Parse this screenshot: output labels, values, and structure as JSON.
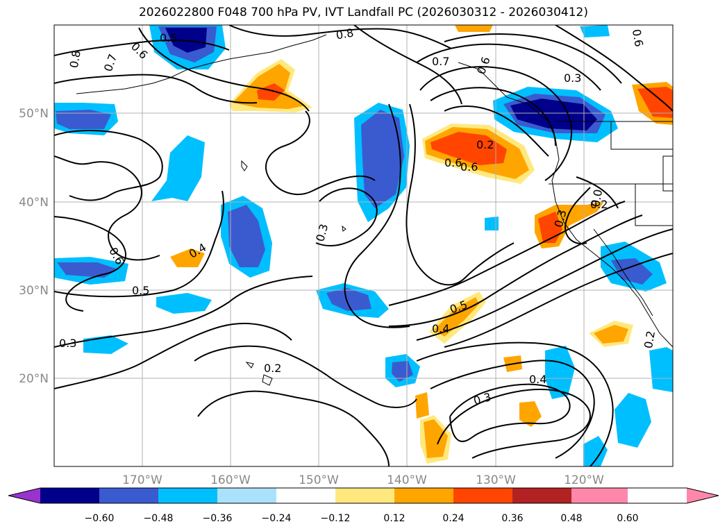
{
  "title": "2026022800 F048 700 hPa PV, IVT Landfall PC (2026030312 - 2026030412)",
  "map": {
    "lon_ticks": [
      "170°W",
      "160°W",
      "150°W",
      "140°W",
      "130°W",
      "120°W"
    ],
    "lat_ticks": [
      "50°N",
      "40°N",
      "30°N",
      "20°N"
    ],
    "contour_labels": [
      "0.5",
      "0.8",
      "0.6",
      "0.7",
      "0.8",
      "0.7",
      "0.6",
      "0.3",
      "0.6",
      "0.2",
      "0.6",
      "0.6",
      "0.0",
      "0.2",
      "0.3",
      "0.4",
      "0.6",
      "0.5",
      "0.3",
      "0.5",
      "0.4",
      "0.2",
      "0.3",
      "0.4",
      "0.2",
      "0.3"
    ]
  },
  "colorbar": {
    "ticks": [
      "−0.60",
      "−0.48",
      "−0.36",
      "−0.24",
      "−0.12",
      "0.12",
      "0.24",
      "0.36",
      "0.48",
      "0.60"
    ],
    "colors": [
      "#9933cc",
      "#00008b",
      "#3a5bd0",
      "#00bfff",
      "#abe2fb",
      "#ffffff",
      "#ffe97f",
      "#ffa500",
      "#ff4500",
      "#b22222",
      "#ff88aa"
    ]
  }
}
